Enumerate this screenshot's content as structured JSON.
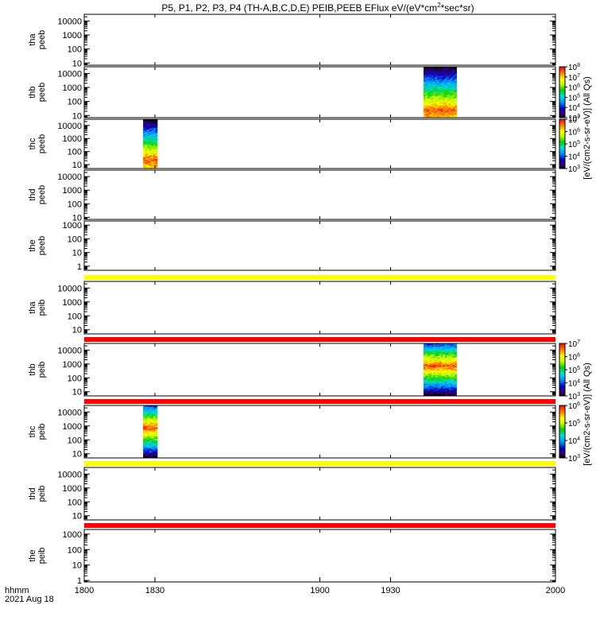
{
  "title_text": "P5, P1, P2, P3, P4 (TH-A,B,C,D,E) PEIB,PEEB EFlux eV/(eV*cm",
  "title_sup": "2",
  "title_tail": "*sec*sr)",
  "time_axis": {
    "label_line1": "hhmm",
    "label_line2": "2021 Aug 18",
    "ticks": [
      {
        "value": 1800,
        "label": "1800"
      },
      {
        "value": 1830,
        "label": "1830"
      },
      {
        "value": 1900,
        "label": "1900"
      },
      {
        "value": 1930,
        "label": "1930"
      },
      {
        "value": 2000,
        "label": "2000"
      }
    ],
    "range": [
      1800,
      2000
    ]
  },
  "colorbars": [
    {
      "label": "[eV/(cm2-s-sr-eV)] (All Qs)",
      "exp_range": [
        3,
        8
      ],
      "ticks": [
        {
          "base": "10",
          "exp": "8"
        },
        {
          "base": "10",
          "exp": "7"
        },
        {
          "base": "10",
          "exp": "6"
        },
        {
          "base": "10",
          "exp": "5"
        },
        {
          "base": "10",
          "exp": "4"
        },
        {
          "base": "10",
          "exp": "3"
        }
      ]
    },
    {
      "label": "[eV/(cm2-s-sr-eV)] (All Qs)",
      "exp_range": [
        3,
        7
      ],
      "ticks": [
        {
          "base": "10",
          "exp": "7"
        },
        {
          "base": "10",
          "exp": "6"
        },
        {
          "base": "10",
          "exp": "5"
        },
        {
          "base": "10",
          "exp": "4"
        },
        {
          "base": "10",
          "exp": "3"
        }
      ]
    },
    {
      "label": "[eV/(cm2-s-sr-eV)] (All Qs)",
      "exp_range": [
        3,
        7
      ],
      "ticks": [
        {
          "base": "10",
          "exp": "7"
        },
        {
          "base": "10",
          "exp": "6"
        },
        {
          "base": "10",
          "exp": "5"
        },
        {
          "base": "10",
          "exp": "4"
        },
        {
          "base": "10",
          "exp": "3"
        }
      ]
    },
    {
      "label": "[eV/(cm2-s-sr-eV)] (All Qs)",
      "exp_range": [
        3,
        6
      ],
      "ticks": [
        {
          "base": "10",
          "exp": "6"
        },
        {
          "base": "10",
          "exp": "5"
        },
        {
          "base": "10",
          "exp": "4"
        },
        {
          "base": "10",
          "exp": "3"
        }
      ]
    }
  ],
  "chart_data": [
    {
      "type": "heatmap",
      "probe": "tha",
      "species": "peeb",
      "ylabel": [
        "tha",
        "peeb"
      ],
      "ylog": true,
      "y_range": [
        7,
        30000
      ],
      "yticks": [
        "10000",
        "1000",
        "100",
        "10"
      ],
      "bands": []
    },
    {
      "type": "heatmap",
      "probe": "thb",
      "species": "peeb",
      "ylabel": [
        "thb",
        "peeb"
      ],
      "ylog": true,
      "y_range": [
        7,
        30000
      ],
      "yticks": [
        "10000",
        "1000",
        "100",
        "10"
      ],
      "bands": [
        {
          "t_start": 1944,
          "t_end": 1958,
          "e_min": 7,
          "e_max": 30000,
          "peak_energy": 20
        }
      ]
    },
    {
      "type": "heatmap",
      "probe": "thc",
      "species": "peeb",
      "ylabel": [
        "thc",
        "peeb"
      ],
      "ylog": true,
      "y_range": [
        5,
        30000
      ],
      "yticks": [
        "10000",
        "1000",
        "100",
        "10"
      ],
      "bands": [
        {
          "t_start": 1825,
          "t_end": 1831,
          "e_min": 5,
          "e_max": 30000,
          "peak_energy": 20
        }
      ]
    },
    {
      "type": "heatmap",
      "probe": "thd",
      "species": "peeb",
      "ylabel": [
        "thd",
        "peeb"
      ],
      "ylog": true,
      "y_range": [
        7,
        30000
      ],
      "yticks": [
        "10000",
        "1000",
        "100",
        "10"
      ],
      "bands": []
    },
    {
      "type": "heatmap",
      "probe": "the",
      "species": "peeb",
      "ylabel": [
        "the",
        "peeb"
      ],
      "ylog": true,
      "y_range": [
        0.5,
        2000
      ],
      "yticks": [
        "1000",
        "100",
        "10",
        "1"
      ],
      "bands": []
    },
    {
      "type": "heatmap",
      "probe": "tha",
      "species": "peib",
      "ylabel": [
        "tha",
        "peib"
      ],
      "ylog": true,
      "y_range": [
        5,
        30000
      ],
      "yticks": [
        "10000",
        "1000",
        "100",
        "10"
      ],
      "bands": []
    },
    {
      "type": "heatmap",
      "probe": "thb",
      "species": "peib",
      "ylabel": [
        "thb",
        "peib"
      ],
      "ylog": true,
      "y_range": [
        5,
        30000
      ],
      "yticks": [
        "10000",
        "1000",
        "100",
        "10"
      ],
      "bands": [
        {
          "t_start": 1944,
          "t_end": 1958,
          "e_min": 5,
          "e_max": 30000,
          "peak_energy": 700
        }
      ]
    },
    {
      "type": "heatmap",
      "probe": "thc",
      "species": "peib",
      "ylabel": [
        "thc",
        "peib"
      ],
      "ylog": true,
      "y_range": [
        5,
        30000
      ],
      "yticks": [
        "10000",
        "1000",
        "100",
        "10"
      ],
      "bands": [
        {
          "t_start": 1825,
          "t_end": 1831,
          "e_min": 5,
          "e_max": 30000,
          "peak_energy": 700
        }
      ]
    },
    {
      "type": "heatmap",
      "probe": "thd",
      "species": "peib",
      "ylabel": [
        "thd",
        "peib"
      ],
      "ylog": true,
      "y_range": [
        5,
        30000
      ],
      "yticks": [
        "10000",
        "1000",
        "100",
        "10"
      ],
      "bands": []
    },
    {
      "type": "heatmap",
      "probe": "the",
      "species": "peib",
      "ylabel": [
        "the",
        "peib"
      ],
      "ylog": true,
      "y_range": [
        0.8,
        2000
      ],
      "yticks": [
        "1000",
        "100",
        "10",
        "1"
      ],
      "bands": []
    }
  ],
  "status_strips": [
    {
      "after_panel": 4,
      "color": "#ffff00"
    },
    {
      "after_panel": 5,
      "color": "#ff0000"
    },
    {
      "after_panel": 6,
      "color": "#ff0000"
    },
    {
      "after_panel": 7,
      "color": "#ffff00"
    },
    {
      "after_panel": 8,
      "color": "#ff0000"
    }
  ]
}
